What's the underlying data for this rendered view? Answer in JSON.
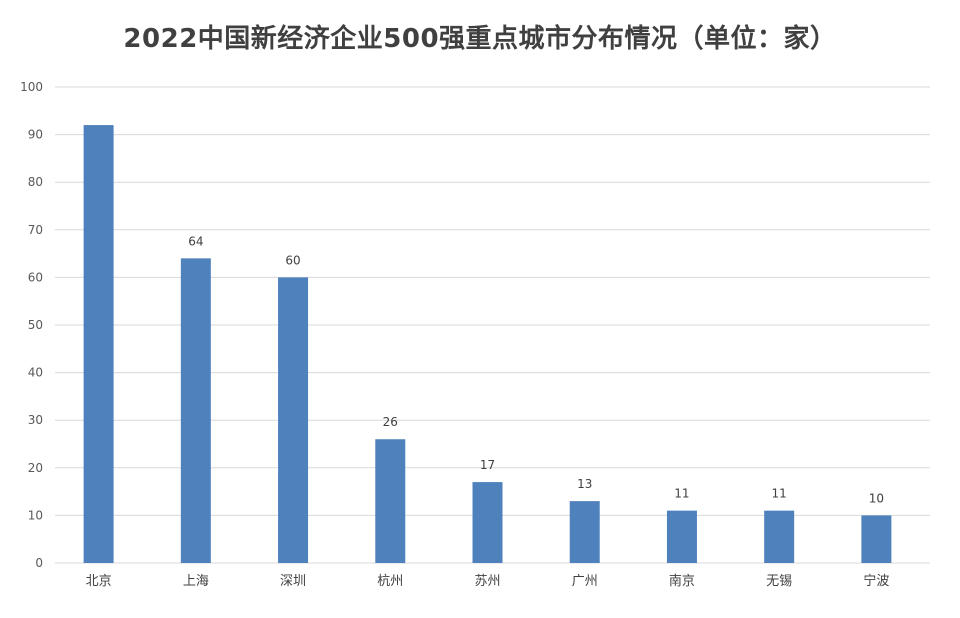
{
  "chart_data": {
    "type": "bar",
    "title": "2022中国新经济企业500强重点城市分布情况（单位：家）",
    "categories": [
      "北京",
      "上海",
      "深圳",
      "杭州",
      "苏州",
      "广州",
      "南京",
      "无锡",
      "宁波"
    ],
    "values": [
      92,
      64,
      60,
      26,
      17,
      13,
      11,
      11,
      10
    ],
    "data_labels": [
      "",
      "64",
      "60",
      "26",
      "17",
      "13",
      "11",
      "11",
      "10"
    ],
    "ylim": [
      0,
      100
    ],
    "yticks": [
      "0",
      "10",
      "20",
      "30",
      "40",
      "50",
      "60",
      "70",
      "80",
      "90",
      "100"
    ],
    "grid": true,
    "bar_color": "#4f81bd",
    "grid_color": "#d9d9d9"
  }
}
